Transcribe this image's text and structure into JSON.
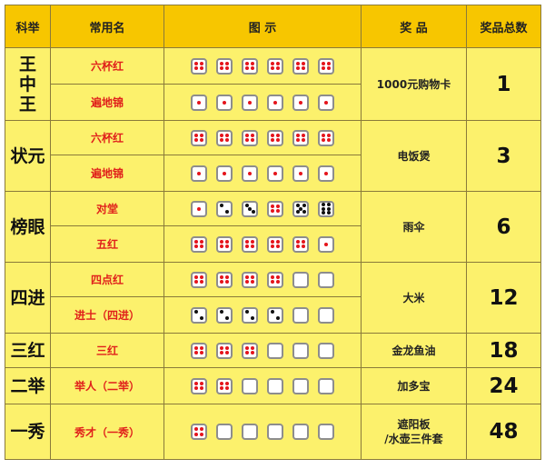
{
  "header": {
    "level": "科举",
    "name": "常用名",
    "diagram": "图 示",
    "prize": "奖 品",
    "count": "奖品总数"
  },
  "colors": {
    "header_bg": "#F7C600",
    "body_bg": "#FCF16C",
    "name_text": "#E0201B"
  },
  "groups": [
    {
      "level": "王中王",
      "prize": "1000元购物卡",
      "count": "1",
      "rows": [
        {
          "name": "六杯红",
          "dice": [
            4,
            4,
            4,
            4,
            4,
            4
          ]
        },
        {
          "name": "遍地锦",
          "dice": [
            1,
            1,
            1,
            1,
            1,
            1
          ]
        }
      ]
    },
    {
      "level": "状元",
      "prize": "电饭煲",
      "count": "3",
      "rows": [
        {
          "name": "六杯红",
          "dice": [
            4,
            4,
            4,
            4,
            4,
            4
          ]
        },
        {
          "name": "遍地锦",
          "dice": [
            1,
            1,
            1,
            1,
            1,
            1
          ]
        }
      ]
    },
    {
      "level": "榜眼",
      "prize": "雨伞",
      "count": "6",
      "rows": [
        {
          "name": "对堂",
          "dice": [
            1,
            2,
            3,
            4,
            5,
            6
          ]
        },
        {
          "name": "五红",
          "dice": [
            4,
            4,
            4,
            4,
            4,
            1
          ]
        }
      ]
    },
    {
      "level": "四进",
      "prize": "大米",
      "count": "12",
      "rows": [
        {
          "name": "四点红",
          "dice": [
            4,
            4,
            4,
            4,
            0,
            0
          ]
        },
        {
          "name": "进士（四进）",
          "dice": [
            2,
            2,
            2,
            2,
            0,
            0
          ]
        }
      ]
    },
    {
      "level": "三红",
      "prize": "金龙鱼油",
      "count": "18",
      "rows": [
        {
          "name": "三红",
          "dice": [
            4,
            4,
            4,
            0,
            0,
            0
          ]
        }
      ]
    },
    {
      "level": "二举",
      "prize": "加多宝",
      "count": "24",
      "rows": [
        {
          "name": "举人（二举）",
          "dice": [
            4,
            4,
            0,
            0,
            0,
            0
          ]
        }
      ]
    },
    {
      "level": "一秀",
      "prize": "遮阳板\n/水壶三件套",
      "count": "48",
      "rows": [
        {
          "name": "秀才（一秀）",
          "dice": [
            4,
            0,
            0,
            0,
            0,
            0
          ]
        }
      ]
    }
  ]
}
